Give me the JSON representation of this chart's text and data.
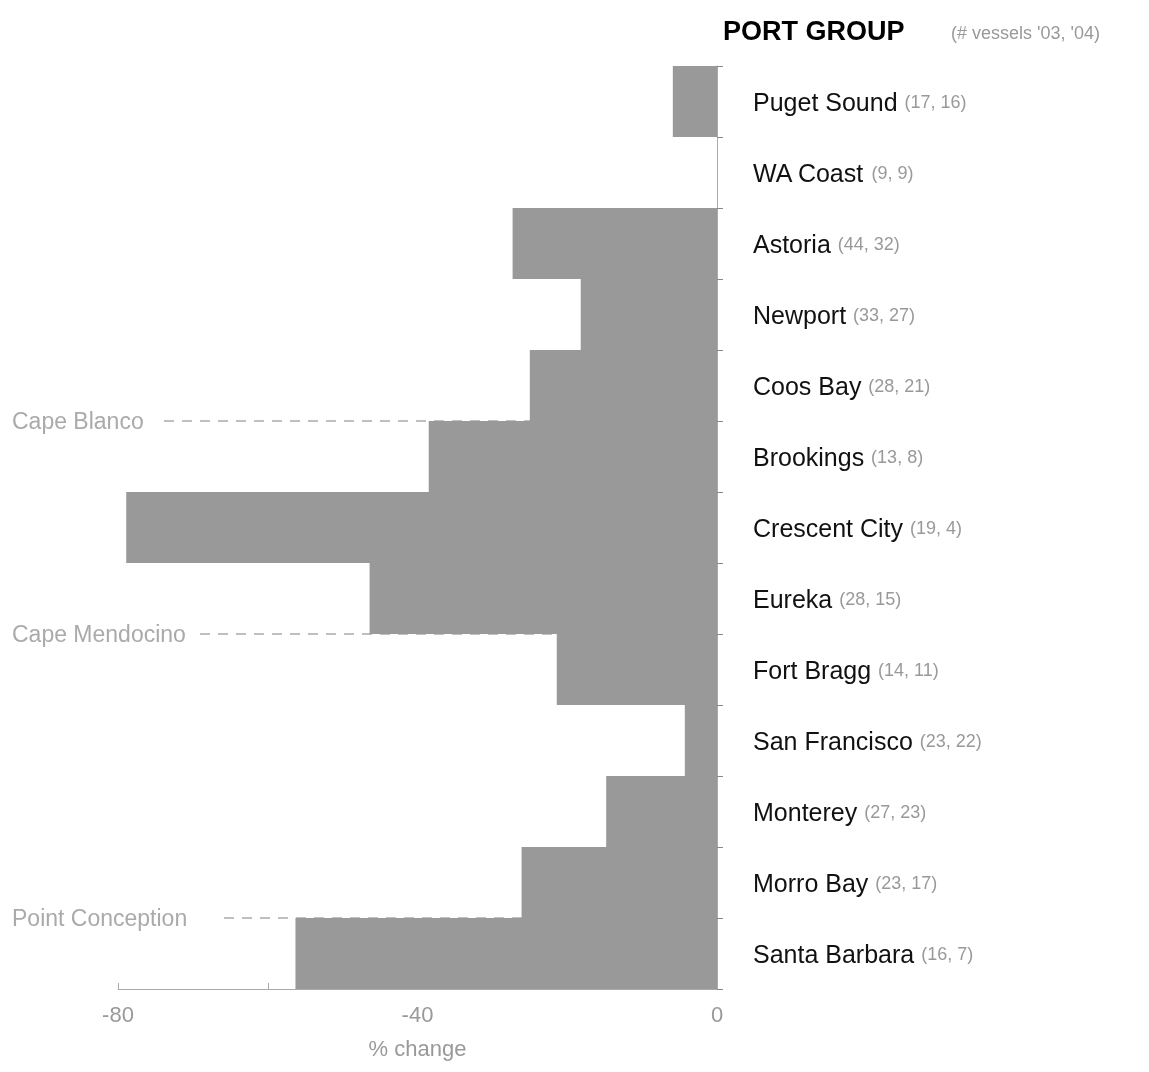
{
  "chart_data": {
    "type": "bar",
    "orientation": "horizontal",
    "title": "PORT GROUP",
    "subtitle": "(# vessels '03, '04)",
    "xlabel": "% change",
    "categories": [
      "Puget Sound (17, 16)",
      "WA Coast (9, 9)",
      "Astoria (44, 32)",
      "Newport (33, 27)",
      "Coos Bay (28, 21)",
      "Brookings (13, 8)",
      "Crescent City (19, 4)",
      "Eureka (28, 15)",
      "Fort Bragg (14, 11)",
      "San Francisco (23, 22)",
      "Monterey (27, 23)",
      "Morro Bay (23, 17)",
      "Santa Barbara (16, 7)"
    ],
    "values": [
      -5.9,
      0,
      -27.3,
      -18.2,
      -25,
      -38.5,
      -78.9,
      -46.4,
      -21.4,
      -4.3,
      -14.8,
      -26.1,
      -56.3
    ],
    "color": "#999999",
    "xlim": [
      -80,
      0
    ],
    "xticks": [
      -80,
      {
        "value": -60,
        "label": null
      },
      -40,
      {
        "value": -20,
        "label": null
      },
      0
    ],
    "annotations": [
      "Cape Blanco",
      "Cape Mendocino",
      "Point Conception"
    ],
    "grid": false
  }
}
